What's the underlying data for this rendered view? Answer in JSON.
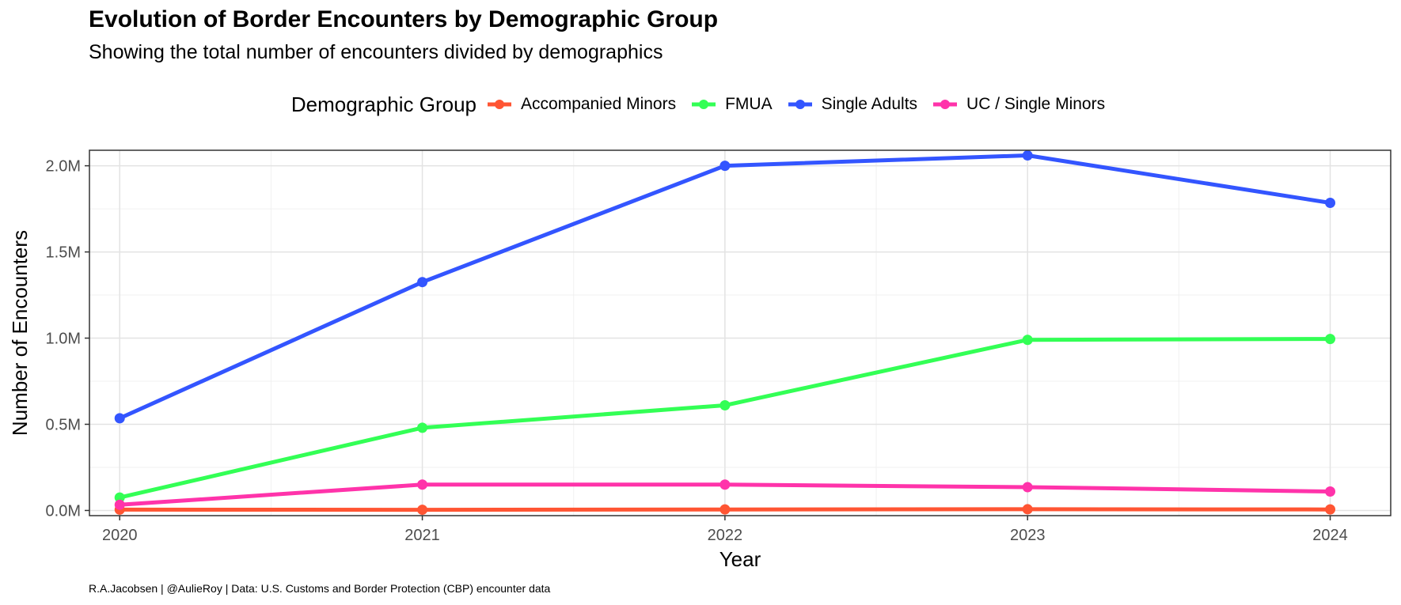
{
  "title": "Evolution of Border Encounters by Demographic Group",
  "subtitle": "Showing the total number of encounters divided by demographics",
  "caption": "R.A.Jacobsen | @AulieRoy | Data: U.S. Customs and Border Protection (CBP) encounter data",
  "legend": {
    "title": "Demographic Group",
    "position": "top"
  },
  "chart_data": {
    "type": "line",
    "x": [
      2020,
      2021,
      2022,
      2023,
      2024
    ],
    "xlabel": "Year",
    "ylabel": "Number of Encounters",
    "yticks": [
      0,
      500000,
      1000000,
      1500000,
      2000000
    ],
    "ytick_labels": [
      "0.0M",
      "0.5M",
      "1.0M",
      "1.5M",
      "2.0M"
    ],
    "xlim": [
      2019.9,
      2024.2
    ],
    "ylim": [
      -30000,
      2090000
    ],
    "grid": true,
    "series": [
      {
        "name": "Accompanied Minors",
        "color": "#ff5533",
        "values": [
          5000,
          4000,
          6000,
          7000,
          6000
        ]
      },
      {
        "name": "FMUA",
        "color": "#33ff55",
        "values": [
          75000,
          480000,
          610000,
          990000,
          995000
        ]
      },
      {
        "name": "Single Adults",
        "color": "#3355ff",
        "values": [
          535000,
          1325000,
          2000000,
          2060000,
          1785000
        ]
      },
      {
        "name": "UC / Single Minors",
        "color": "#ff33aa",
        "values": [
          33000,
          150000,
          150000,
          135000,
          110000
        ]
      }
    ]
  }
}
